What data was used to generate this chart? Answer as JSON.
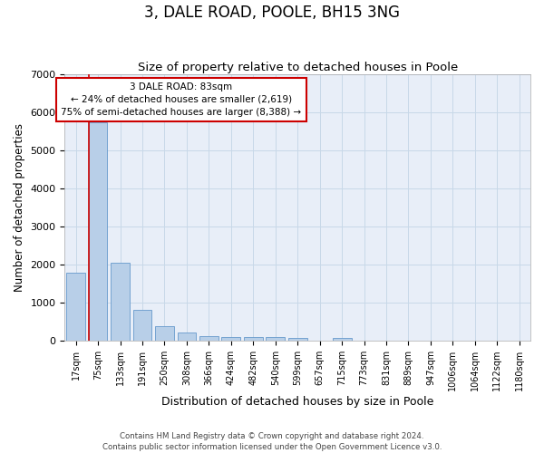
{
  "title": "3, DALE ROAD, POOLE, BH15 3NG",
  "subtitle": "Size of property relative to detached houses in Poole",
  "xlabel": "Distribution of detached houses by size in Poole",
  "ylabel": "Number of detached properties",
  "categories": [
    "17sqm",
    "75sqm",
    "133sqm",
    "191sqm",
    "250sqm",
    "308sqm",
    "366sqm",
    "424sqm",
    "482sqm",
    "540sqm",
    "599sqm",
    "657sqm",
    "715sqm",
    "773sqm",
    "831sqm",
    "889sqm",
    "947sqm",
    "1006sqm",
    "1064sqm",
    "1122sqm",
    "1180sqm"
  ],
  "values": [
    1800,
    5750,
    2050,
    820,
    380,
    230,
    120,
    110,
    100,
    90,
    80,
    0,
    80,
    0,
    0,
    0,
    0,
    0,
    0,
    0,
    0
  ],
  "bar_color": "#b8cfe8",
  "bar_edge_color": "#6699cc",
  "red_line_bar_index": 1,
  "annotation_line1": "3 DALE ROAD: 83sqm",
  "annotation_line2": "← 24% of detached houses are smaller (2,619)",
  "annotation_line3": "75% of semi-detached houses are larger (8,388) →",
  "annotation_box_facecolor": "#ffffff",
  "annotation_box_edgecolor": "#cc0000",
  "red_line_color": "#cc0000",
  "ylim": [
    0,
    7000
  ],
  "yticks": [
    0,
    1000,
    2000,
    3000,
    4000,
    5000,
    6000,
    7000
  ],
  "grid_color": "#c8d8e8",
  "plot_bg_color": "#e8eef8",
  "footer_line1": "Contains HM Land Registry data © Crown copyright and database right 2024.",
  "footer_line2": "Contains public sector information licensed under the Open Government Licence v3.0."
}
